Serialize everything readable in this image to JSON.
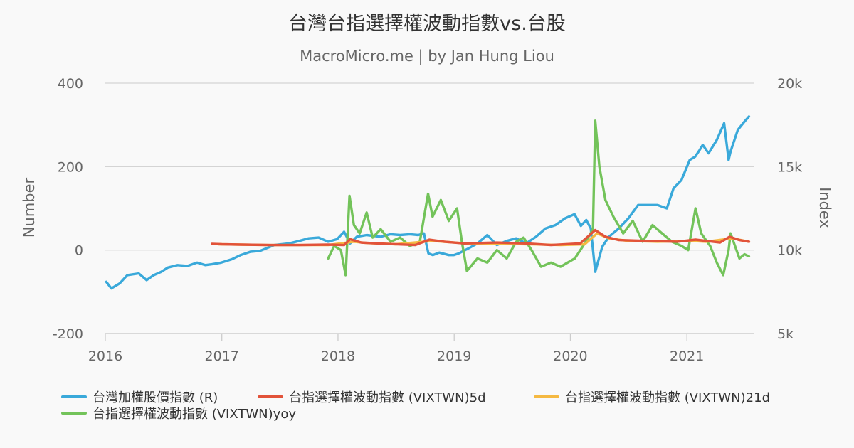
{
  "chart_data": {
    "type": "line",
    "title": "台灣台指選擇權波動指數vs.台股",
    "subtitle": "MacroMicro.me | by Jan Hung Liou",
    "ylabel_left": "Number",
    "ylabel_right": "Index",
    "left_axis": {
      "ylim": [
        -200,
        400
      ],
      "ticks": [
        "-200",
        "0",
        "200",
        "400"
      ]
    },
    "right_axis": {
      "ylim": [
        5000,
        20000
      ],
      "ticks": [
        "5k",
        "10k",
        "15k",
        "20k"
      ]
    },
    "x_range": [
      "2016-01-01",
      "2021-08-01"
    ],
    "x_ticks": [
      "2016",
      "2017",
      "2018",
      "2019",
      "2020",
      "2021"
    ],
    "grid": true,
    "legend_position": "bottom",
    "series": [
      {
        "name": "台灣加權股價指數 (R)",
        "axis": "right",
        "color": "#3aa9da",
        "points": [
          [
            "2016-01-04",
            8100
          ],
          [
            "2016-01-20",
            7700
          ],
          [
            "2016-02-15",
            8000
          ],
          [
            "2016-03-10",
            8500
          ],
          [
            "2016-04-15",
            8600
          ],
          [
            "2016-05-10",
            8200
          ],
          [
            "2016-06-01",
            8500
          ],
          [
            "2016-06-25",
            8700
          ],
          [
            "2016-07-15",
            8950
          ],
          [
            "2016-08-15",
            9100
          ],
          [
            "2016-09-15",
            9050
          ],
          [
            "2016-10-15",
            9250
          ],
          [
            "2016-11-10",
            9100
          ],
          [
            "2016-12-01",
            9150
          ],
          [
            "2016-12-30",
            9250
          ],
          [
            "2017-02-01",
            9450
          ],
          [
            "2017-03-01",
            9700
          ],
          [
            "2017-04-01",
            9900
          ],
          [
            "2017-05-01",
            9950
          ],
          [
            "2017-05-20",
            10100
          ],
          [
            "2017-06-15",
            10300
          ],
          [
            "2017-08-01",
            10400
          ],
          [
            "2017-09-01",
            10550
          ],
          [
            "2017-10-01",
            10700
          ],
          [
            "2017-11-01",
            10750
          ],
          [
            "2017-12-01",
            10500
          ],
          [
            "2017-12-29",
            10650
          ],
          [
            "2018-01-20",
            11100
          ],
          [
            "2018-02-08",
            10400
          ],
          [
            "2018-03-01",
            10800
          ],
          [
            "2018-04-01",
            10900
          ],
          [
            "2018-05-15",
            10800
          ],
          [
            "2018-06-15",
            10950
          ],
          [
            "2018-07-15",
            10900
          ],
          [
            "2018-08-15",
            10950
          ],
          [
            "2018-09-10",
            10900
          ],
          [
            "2018-09-28",
            11000
          ],
          [
            "2018-10-12",
            9800
          ],
          [
            "2018-10-26",
            9700
          ],
          [
            "2018-11-15",
            9850
          ],
          [
            "2018-12-15",
            9700
          ],
          [
            "2018-12-31",
            9700
          ],
          [
            "2019-01-15",
            9800
          ],
          [
            "2019-02-15",
            10100
          ],
          [
            "2019-03-15",
            10400
          ],
          [
            "2019-04-15",
            10900
          ],
          [
            "2019-05-15",
            10300
          ],
          [
            "2019-06-15",
            10550
          ],
          [
            "2019-07-15",
            10700
          ],
          [
            "2019-08-15",
            10400
          ],
          [
            "2019-09-15",
            10800
          ],
          [
            "2019-10-15",
            11300
          ],
          [
            "2019-11-15",
            11500
          ],
          [
            "2019-12-15",
            11900
          ],
          [
            "2020-01-14",
            12150
          ],
          [
            "2020-02-03",
            11450
          ],
          [
            "2020-02-20",
            11800
          ],
          [
            "2020-03-05",
            11300
          ],
          [
            "2020-03-19",
            8700
          ],
          [
            "2020-04-10",
            10200
          ],
          [
            "2020-05-01",
            10800
          ],
          [
            "2020-06-01",
            11300
          ],
          [
            "2020-07-01",
            11900
          ],
          [
            "2020-08-01",
            12700
          ],
          [
            "2020-09-01",
            12700
          ],
          [
            "2020-10-01",
            12700
          ],
          [
            "2020-10-30",
            12500
          ],
          [
            "2020-11-20",
            13700
          ],
          [
            "2020-12-15",
            14200
          ],
          [
            "2021-01-10",
            15400
          ],
          [
            "2021-01-27",
            15600
          ],
          [
            "2021-02-10",
            16000
          ],
          [
            "2021-02-20",
            16300
          ],
          [
            "2021-03-10",
            15800
          ],
          [
            "2021-04-05",
            16600
          ],
          [
            "2021-04-28",
            17600
          ],
          [
            "2021-05-12",
            15400
          ],
          [
            "2021-05-18",
            15900
          ],
          [
            "2021-06-10",
            17200
          ],
          [
            "2021-07-01",
            17700
          ],
          [
            "2021-07-15",
            18000
          ]
        ]
      },
      {
        "name": "台指選擇權波動指數 (VIXTWN)5d",
        "axis": "left",
        "color": "#e2533a",
        "points": [
          [
            "2016-12-01",
            15
          ],
          [
            "2017-01-01",
            14
          ],
          [
            "2017-03-01",
            13
          ],
          [
            "2017-06-01",
            12
          ],
          [
            "2017-09-01",
            12
          ],
          [
            "2017-12-01",
            13
          ],
          [
            "2018-01-20",
            12
          ],
          [
            "2018-02-08",
            26
          ],
          [
            "2018-03-15",
            18
          ],
          [
            "2018-06-01",
            15
          ],
          [
            "2018-09-01",
            12
          ],
          [
            "2018-10-15",
            25
          ],
          [
            "2018-12-01",
            20
          ],
          [
            "2019-02-01",
            16
          ],
          [
            "2019-05-15",
            18
          ],
          [
            "2019-08-15",
            16
          ],
          [
            "2019-11-01",
            12
          ],
          [
            "2020-02-01",
            16
          ],
          [
            "2020-03-19",
            48
          ],
          [
            "2020-04-20",
            32
          ],
          [
            "2020-06-01",
            24
          ],
          [
            "2020-09-01",
            22
          ],
          [
            "2020-12-01",
            20
          ],
          [
            "2021-01-28",
            25
          ],
          [
            "2021-04-15",
            18
          ],
          [
            "2021-05-15",
            32
          ],
          [
            "2021-06-15",
            24
          ],
          [
            "2021-07-15",
            20
          ]
        ]
      },
      {
        "name": "台指選擇權波動指數 (VIXTWN)21d",
        "axis": "left",
        "color": "#f5b942",
        "points": [
          [
            "2016-12-20",
            14
          ],
          [
            "2017-03-01",
            13
          ],
          [
            "2017-06-01",
            12
          ],
          [
            "2017-09-01",
            12
          ],
          [
            "2017-12-01",
            12
          ],
          [
            "2018-02-20",
            20
          ],
          [
            "2018-04-01",
            17
          ],
          [
            "2018-07-01",
            14
          ],
          [
            "2018-10-25",
            22
          ],
          [
            "2018-12-15",
            19
          ],
          [
            "2019-03-01",
            15
          ],
          [
            "2019-06-01",
            15
          ],
          [
            "2019-09-01",
            14
          ],
          [
            "2019-12-01",
            12
          ],
          [
            "2020-02-15",
            14
          ],
          [
            "2020-03-25",
            40
          ],
          [
            "2020-05-01",
            28
          ],
          [
            "2020-07-01",
            22
          ],
          [
            "2020-10-01",
            20
          ],
          [
            "2021-01-15",
            22
          ],
          [
            "2021-03-01",
            20
          ],
          [
            "2021-05-25",
            28
          ],
          [
            "2021-07-15",
            20
          ]
        ]
      },
      {
        "name": "台指選擇權波動指數 (VIXTWN)yoy",
        "axis": "left",
        "color": "#73c35a",
        "points": [
          [
            "2017-12-01",
            -20
          ],
          [
            "2017-12-20",
            10
          ],
          [
            "2018-01-10",
            0
          ],
          [
            "2018-01-25",
            -60
          ],
          [
            "2018-02-06",
            130
          ],
          [
            "2018-02-20",
            60
          ],
          [
            "2018-03-10",
            40
          ],
          [
            "2018-04-01",
            90
          ],
          [
            "2018-04-20",
            30
          ],
          [
            "2018-05-15",
            50
          ],
          [
            "2018-06-15",
            20
          ],
          [
            "2018-07-15",
            30
          ],
          [
            "2018-08-15",
            10
          ],
          [
            "2018-09-15",
            20
          ],
          [
            "2018-10-11",
            135
          ],
          [
            "2018-10-25",
            80
          ],
          [
            "2018-11-20",
            120
          ],
          [
            "2018-12-15",
            70
          ],
          [
            "2019-01-10",
            100
          ],
          [
            "2019-01-25",
            20
          ],
          [
            "2019-02-10",
            -50
          ],
          [
            "2019-03-15",
            -20
          ],
          [
            "2019-04-15",
            -30
          ],
          [
            "2019-05-15",
            0
          ],
          [
            "2019-06-15",
            -20
          ],
          [
            "2019-07-15",
            20
          ],
          [
            "2019-08-07",
            30
          ],
          [
            "2019-09-01",
            0
          ],
          [
            "2019-10-01",
            -40
          ],
          [
            "2019-11-01",
            -30
          ],
          [
            "2019-12-01",
            -40
          ],
          [
            "2020-01-15",
            -20
          ],
          [
            "2020-02-10",
            10
          ],
          [
            "2020-03-12",
            50
          ],
          [
            "2020-03-19",
            310
          ],
          [
            "2020-04-01",
            200
          ],
          [
            "2020-04-20",
            120
          ],
          [
            "2020-05-15",
            80
          ],
          [
            "2020-06-15",
            40
          ],
          [
            "2020-07-15",
            70
          ],
          [
            "2020-08-15",
            20
          ],
          [
            "2020-09-15",
            60
          ],
          [
            "2020-10-15",
            40
          ],
          [
            "2020-11-15",
            20
          ],
          [
            "2020-12-15",
            10
          ],
          [
            "2021-01-05",
            0
          ],
          [
            "2021-01-28",
            100
          ],
          [
            "2021-02-15",
            40
          ],
          [
            "2021-03-15",
            10
          ],
          [
            "2021-04-05",
            -30
          ],
          [
            "2021-04-25",
            -60
          ],
          [
            "2021-05-12",
            0
          ],
          [
            "2021-05-18",
            40
          ],
          [
            "2021-06-15",
            -20
          ],
          [
            "2021-07-01",
            -10
          ],
          [
            "2021-07-15",
            -15
          ]
        ]
      }
    ]
  }
}
